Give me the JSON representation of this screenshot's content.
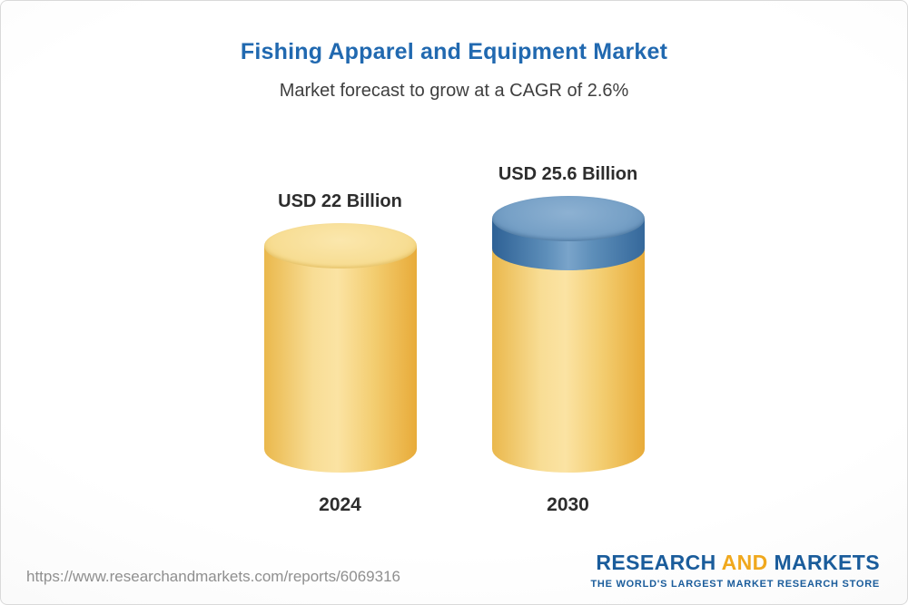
{
  "header": {
    "title": "Fishing Apparel and Equipment Market",
    "subtitle": "Market forecast to grow at a CAGR of 2.6%"
  },
  "chart_data": {
    "type": "bar",
    "style": "3d-cylinder",
    "categories": [
      "2024",
      "2030"
    ],
    "values": [
      22,
      25.6
    ],
    "value_labels": [
      "USD 22 Billion",
      "USD 25.6 Billion"
    ],
    "unit": "USD Billion",
    "title": "Fishing Apparel and Equipment Market",
    "subtitle": "Market forecast to grow at a CAGR of 2.6%",
    "cagr_percent": 2.6,
    "ylim": [
      0,
      25.6
    ],
    "grid": false,
    "legend": "none",
    "colors": {
      "bar_base": "#F6CD6B",
      "bar_growth_segment": "#5B8BB5",
      "title_text": "#2169B0",
      "label_text": "#2D2D2D"
    }
  },
  "footer": {
    "url": "https://www.researchandmarkets.com/reports/6069316",
    "logo": {
      "word1": "RESEARCH",
      "word2": "AND",
      "word3": "MARKETS",
      "tagline": "THE WORLD'S LARGEST MARKET RESEARCH STORE"
    }
  }
}
